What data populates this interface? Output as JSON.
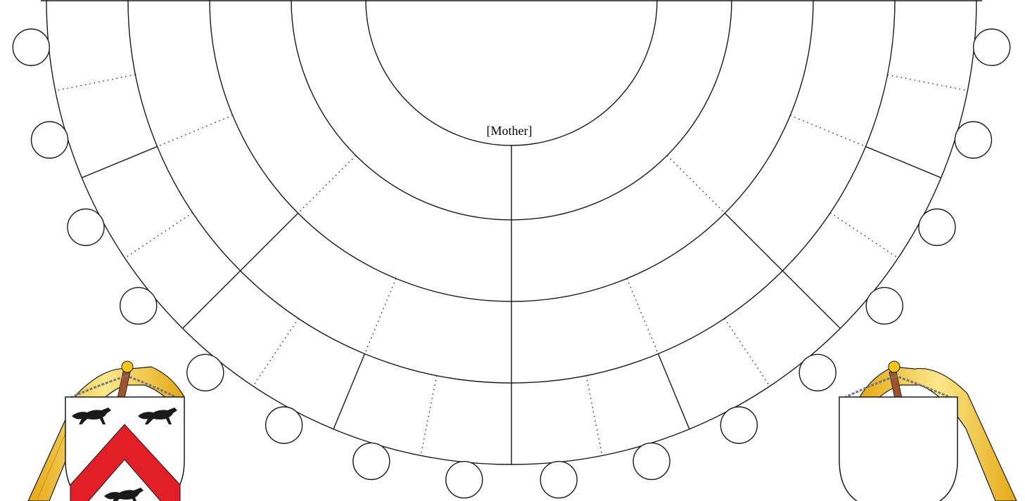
{
  "root_label": "[Mother]",
  "generations": 5,
  "colors": {
    "line": "#1a1a1a",
    "background": "#ffffff",
    "shield_field": "#ffffff",
    "chevron": "#e21f26",
    "greyhound": "#1a1a1a",
    "mantle": "#f2c320",
    "mantle_light": "#fbe88a",
    "pole": "#a0522d",
    "knob": "#f5c518",
    "chain": "#777777"
  },
  "icons": {
    "left_crest": "shield-chevron-greyhounds-icon",
    "right_crest": "blank-shield-icon"
  }
}
